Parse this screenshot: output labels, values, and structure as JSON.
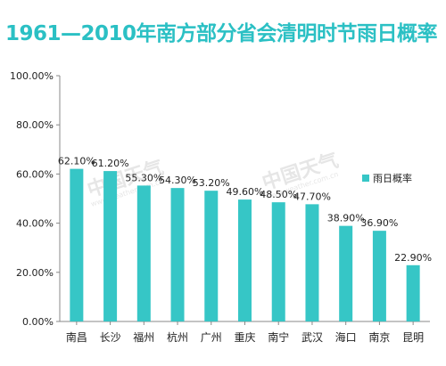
{
  "watermark": {
    "text": "中国天气",
    "sub": "www.weather.com.cn"
  },
  "chart_data": {
    "type": "bar",
    "title": "1961—2010年南方部分省会清明时节雨日概率",
    "xlabel": "",
    "ylabel": "",
    "categories": [
      "南昌",
      "长沙",
      "福州",
      "杭州",
      "广州",
      "重庆",
      "南宁",
      "武汉",
      "海口",
      "南京",
      "昆明"
    ],
    "series": [
      {
        "name": "雨日概率",
        "values": [
          62.1,
          61.2,
          55.3,
          54.3,
          53.2,
          49.6,
          48.5,
          47.7,
          38.9,
          36.9,
          22.9
        ],
        "labels": [
          "62.10%",
          "61.20%",
          "55.30%",
          "54.30%",
          "53.20%",
          "49.60%",
          "48.50%",
          "47.70%",
          "38.90%",
          "36.90%",
          "22.90%"
        ]
      }
    ],
    "ylim": [
      0,
      100
    ],
    "yticks": [
      0,
      20,
      40,
      60,
      80,
      100
    ],
    "ytick_labels": [
      "0.00%",
      "20.00%",
      "40.00%",
      "60.00%",
      "80.00%",
      "100.00%"
    ],
    "grid": false,
    "legend_position": "right",
    "bar_color": "#36c6c6"
  }
}
